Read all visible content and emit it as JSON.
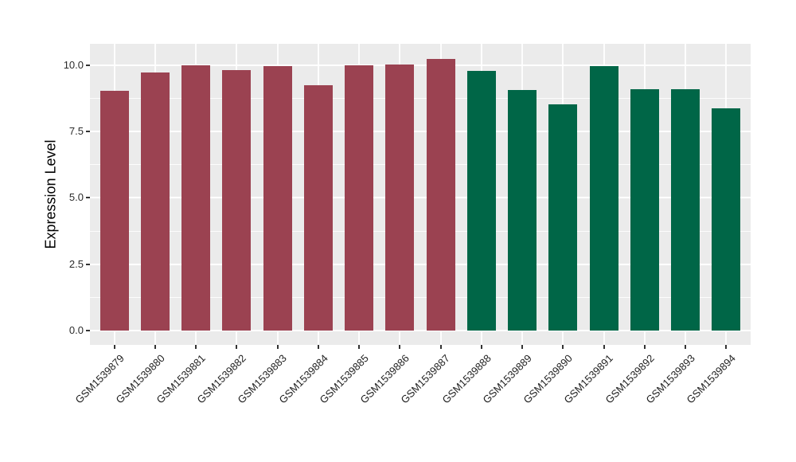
{
  "chart_data": {
    "type": "bar",
    "title": "",
    "xlabel": "",
    "ylabel": "Expression Level",
    "categories": [
      "GSM1539879",
      "GSM1539880",
      "GSM1539881",
      "GSM1539882",
      "GSM1539883",
      "GSM1539884",
      "GSM1539885",
      "GSM1539886",
      "GSM1539887",
      "GSM1539888",
      "GSM1539889",
      "GSM1539890",
      "GSM1539891",
      "GSM1539892",
      "GSM1539893",
      "GSM1539894"
    ],
    "values": [
      9.02,
      9.73,
      9.98,
      9.8,
      9.95,
      9.25,
      9.98,
      10.03,
      10.22,
      9.78,
      9.05,
      8.52,
      9.95,
      9.1,
      9.1,
      8.38
    ],
    "bar_colors": [
      "#9B4251",
      "#9B4251",
      "#9B4251",
      "#9B4251",
      "#9B4251",
      "#9B4251",
      "#9B4251",
      "#9B4251",
      "#9B4251",
      "#006647",
      "#006647",
      "#006647",
      "#006647",
      "#006647",
      "#006647",
      "#006647"
    ],
    "group_colors": {
      "group_1": "#9B4251",
      "group_2": "#006647"
    },
    "y_tick_labels": [
      "0.0",
      "2.5",
      "5.0",
      "7.5",
      "10.0"
    ],
    "y_tick_values": [
      0,
      2.5,
      5,
      7.5,
      10
    ],
    "y_minor_values": [
      1.25,
      3.75,
      6.25,
      8.75
    ],
    "ylim": [
      -0.54,
      10.8
    ],
    "grid": true,
    "legend": false,
    "panel_bg": "#EBEBEB",
    "grid_color": "#FFFFFF",
    "tick_color": "#333333"
  }
}
